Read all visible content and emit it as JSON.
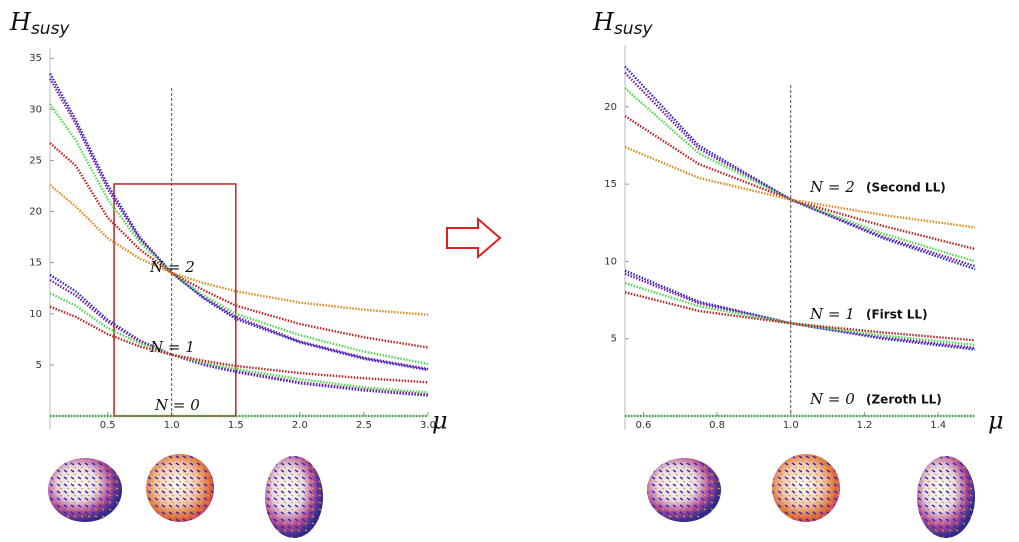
{
  "chart_data": [
    {
      "type": "line",
      "ylabel": "H",
      "ylabel_sub": "susy",
      "xlabel": "μ",
      "x": [
        0.05,
        0.25,
        0.5,
        0.75,
        1.0,
        1.25,
        1.5,
        2.0,
        2.5,
        3.0
      ],
      "xlim": [
        0.05,
        3.0
      ],
      "ylim": [
        0,
        36
      ],
      "xticks": [
        0.5,
        {
          "value": 1,
          "label": "1.0"
        },
        1.5,
        {
          "value": 2,
          "label": "2.0"
        },
        2.5,
        {
          "value": 3,
          "label": "3.0"
        }
      ],
      "yticks": [
        5,
        10,
        15,
        20,
        25,
        30,
        35
      ],
      "reference_x": 1.0,
      "highlight": {
        "xlim": [
          0.55,
          1.5
        ],
        "ylim": [
          0,
          22.7
        ]
      },
      "annotations": [
        {
          "text": "N = 2"
        },
        {
          "text": "N = 1"
        },
        {
          "text": "N = 0"
        }
      ],
      "series": [
        {
          "color": "#2a2ad0",
          "values": [
            33.5,
            29,
            22.6,
            17.5,
            14,
            11.5,
            9.5,
            7.2,
            5.6,
            4.5
          ]
        },
        {
          "color": "#7a1fa0",
          "values": [
            33,
            28.6,
            22.2,
            17.3,
            14,
            11.6,
            9.7,
            7.3,
            5.7,
            4.6
          ]
        },
        {
          "color": "#4ddb4d",
          "values": [
            30.5,
            27,
            21.2,
            17,
            14,
            11.8,
            10,
            7.9,
            6.3,
            5.1
          ]
        },
        {
          "color": "#c42020",
          "values": [
            26.7,
            24.5,
            19.4,
            16.3,
            14,
            12.3,
            10.8,
            9,
            7.7,
            6.7
          ]
        },
        {
          "color": "#e08a1a",
          "values": [
            22.6,
            20.5,
            17.4,
            15.4,
            14,
            13,
            12.2,
            11.1,
            10.4,
            9.9
          ]
        },
        {
          "color": "#2a2ad0",
          "values": [
            13.8,
            12.2,
            9.4,
            7.4,
            6,
            5,
            4.3,
            3.2,
            2.5,
            2
          ]
        },
        {
          "color": "#7a1fa0",
          "values": [
            13.3,
            11.8,
            9.2,
            7.3,
            6,
            5.1,
            4.4,
            3.3,
            2.6,
            2.1
          ]
        },
        {
          "color": "#4ddb4d",
          "values": [
            12,
            10.8,
            8.6,
            7.1,
            6,
            5.2,
            4.6,
            3.6,
            2.8,
            2.3
          ]
        },
        {
          "color": "#c42020",
          "values": [
            10.7,
            9.7,
            8,
            6.8,
            6,
            5.4,
            4.9,
            4.2,
            3.7,
            3.3
          ]
        },
        {
          "color": "#3aa83a",
          "values": [
            0,
            0,
            0,
            0,
            0,
            0,
            0,
            0,
            0,
            0
          ]
        }
      ]
    },
    {
      "type": "line",
      "ylabel": "H",
      "ylabel_sub": "susy",
      "xlabel": "μ",
      "x": [
        0.55,
        0.75,
        1.0,
        1.25,
        1.5
      ],
      "xlim": [
        0.55,
        1.5
      ],
      "ylim": [
        0,
        24
      ],
      "xticks": [
        0.6,
        0.8,
        {
          "value": 1,
          "label": "1.0"
        },
        1.2,
        1.4
      ],
      "yticks": [
        5,
        10,
        15,
        20
      ],
      "reference_x": 1.0,
      "annotations": [
        {
          "text": "N = 2",
          "note": "(Second LL)"
        },
        {
          "text": "N = 1",
          "note": "(First LL)"
        },
        {
          "text": "N = 0",
          "note": "(Zeroth LL)"
        }
      ],
      "series": [
        {
          "color": "#2a2ad0",
          "values": [
            22.6,
            17.5,
            14,
            11.5,
            9.5
          ]
        },
        {
          "color": "#7a1fa0",
          "values": [
            22.2,
            17.3,
            14,
            11.6,
            9.7
          ]
        },
        {
          "color": "#4ddb4d",
          "values": [
            21.2,
            17,
            14,
            11.8,
            10
          ]
        },
        {
          "color": "#c42020",
          "values": [
            19.4,
            16.3,
            14,
            12.3,
            10.8
          ]
        },
        {
          "color": "#e08a1a",
          "values": [
            17.4,
            15.4,
            14,
            13,
            12.2
          ]
        },
        {
          "color": "#2a2ad0",
          "values": [
            9.4,
            7.4,
            6,
            5,
            4.3
          ]
        },
        {
          "color": "#7a1fa0",
          "values": [
            9.2,
            7.3,
            6,
            5.1,
            4.4
          ]
        },
        {
          "color": "#4ddb4d",
          "values": [
            8.6,
            7.1,
            6,
            5.2,
            4.6
          ]
        },
        {
          "color": "#c42020",
          "values": [
            8,
            6.8,
            6,
            5.4,
            4.9
          ]
        },
        {
          "color": "#3aa83a",
          "values": [
            0,
            0,
            0,
            0,
            0
          ]
        }
      ]
    }
  ]
}
